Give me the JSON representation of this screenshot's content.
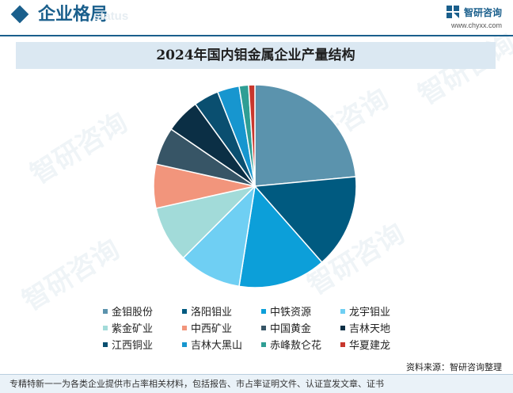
{
  "header": {
    "title": "企业格局",
    "ghost_text": "status",
    "brand_name": "智研咨询",
    "brand_url": "www.chyxx.com"
  },
  "watermark_text": "智研咨询",
  "chart_data": {
    "type": "pie",
    "title": "2024年国内钼金属企业产量结构",
    "legend_position": "bottom",
    "start_angle_deg": 0,
    "direction": "clockwise",
    "slices": [
      {
        "name": "金钼股份",
        "value": 23.5,
        "color": "#5b93ad"
      },
      {
        "name": "洛阳钼业",
        "value": 15.0,
        "color": "#005a80"
      },
      {
        "name": "中铁资源",
        "value": 14.0,
        "color": "#0c9fd9"
      },
      {
        "name": "龙宇钼业",
        "value": 10.0,
        "color": "#6fcff3"
      },
      {
        "name": "紫金矿业",
        "value": 9.0,
        "color": "#a2dbd9"
      },
      {
        "name": "中西矿业",
        "value": 7.0,
        "color": "#f2957c"
      },
      {
        "name": "中国黄金",
        "value": 6.0,
        "color": "#375566"
      },
      {
        "name": "吉林天地",
        "value": 5.5,
        "color": "#0b2f45"
      },
      {
        "name": "江西铜业",
        "value": 4.0,
        "color": "#0a4f70"
      },
      {
        "name": "吉林大黑山",
        "value": 3.5,
        "color": "#1796cf"
      },
      {
        "name": "赤峰敖仑花",
        "value": 1.5,
        "color": "#2f9e94"
      },
      {
        "name": "华夏建龙",
        "value": 1.0,
        "color": "#c8372d"
      }
    ]
  },
  "footer": {
    "source": "资料来源：智研咨询整理",
    "disclaimer": "专精特新一一为各类企业提供市占率相关材料，包括报告、市占率证明文件、认证宣发文章、证书"
  }
}
